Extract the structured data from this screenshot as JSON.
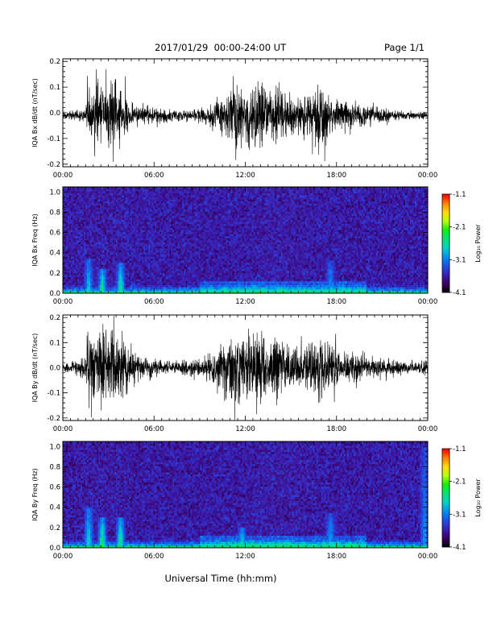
{
  "header": {
    "date_range": "2017/01/29  00:00-24:00 UT",
    "page": "Page 1/1"
  },
  "x_axis_title": "Universal Time (hh:mm)",
  "colorbar": {
    "label": "Log₁₀ Power",
    "tick_labels": [
      "-1.1",
      "-2.1",
      "-3.1",
      "-4.1"
    ],
    "range": [
      -4.1,
      -1.1
    ],
    "colormap": [
      "#000000",
      "#3a0060",
      "#3b1fb4",
      "#1f4fe6",
      "#0090f0",
      "#00d2c8",
      "#00e27a",
      "#10ee10",
      "#b8ff00",
      "#ffe000",
      "#ff8000",
      "#ff0000"
    ]
  },
  "chart_data": [
    {
      "type": "line",
      "panel": "bx_waveform",
      "ylabel": "IQA Bx dB/dt (nT/sec)",
      "xlim_hours": [
        0,
        24
      ],
      "x_tick_labels": [
        "00:00",
        "06:00",
        "12:00",
        "18:00",
        "00:00"
      ],
      "ylim": [
        -0.21,
        0.21
      ],
      "y_tick_labels": [
        "0.2",
        "0.1",
        "0.0",
        "-0.1",
        "-0.2"
      ],
      "y_ticks": [
        0.2,
        0.1,
        0.0,
        -0.1,
        -0.2
      ],
      "baseline": -0.01,
      "envelope": {
        "hours": [
          0,
          1.0,
          1.5,
          1.6,
          2.0,
          2.5,
          3.0,
          3.5,
          4.0,
          4.5,
          5.0,
          6.0,
          7.0,
          8.0,
          9.0,
          9.5,
          10.0,
          11.0,
          11.5,
          12.0,
          12.5,
          13.0,
          13.5,
          14.0,
          14.5,
          15.0,
          15.5,
          16.0,
          17.0,
          17.5,
          18.0,
          19.0,
          20.0,
          21.0,
          22.0,
          23.0,
          24.0
        ],
        "amplitude": [
          0.02,
          0.025,
          0.05,
          0.21,
          0.16,
          0.21,
          0.14,
          0.21,
          0.14,
          0.07,
          0.05,
          0.04,
          0.035,
          0.03,
          0.035,
          0.05,
          0.08,
          0.12,
          0.21,
          0.15,
          0.18,
          0.21,
          0.12,
          0.21,
          0.13,
          0.11,
          0.09,
          0.1,
          0.18,
          0.11,
          0.09,
          0.07,
          0.05,
          0.04,
          0.025,
          0.02,
          0.02
        ]
      }
    },
    {
      "type": "heatmap",
      "panel": "bx_spectrogram",
      "ylabel": "IQA Bx Freq (Hz)",
      "xlim_hours": [
        0,
        24
      ],
      "x_tick_labels": [
        "00:00",
        "06:00",
        "12:00",
        "18:00",
        "00:00"
      ],
      "ylim": [
        0,
        1.05
      ],
      "y_tick_labels": [
        "1.0",
        "0.8",
        "0.6",
        "0.4",
        "0.2",
        "0.0"
      ],
      "y_ticks": [
        1.0,
        0.8,
        0.6,
        0.4,
        0.2,
        0.0
      ],
      "zlim": [
        -4.1,
        -1.1
      ],
      "background_log_power": -3.6,
      "features": [
        {
          "hour": 1.7,
          "freq_max": 0.35,
          "log_power": -2.6
        },
        {
          "hour": 2.6,
          "freq_max": 0.25,
          "log_power": -2.3
        },
        {
          "hour": 3.8,
          "freq_max": 0.3,
          "log_power": -2.3
        },
        {
          "hour": 12.5,
          "freq_max": 0.1,
          "log_power": -2.4
        },
        {
          "hour": 17.6,
          "freq_max": 0.33,
          "log_power": -2.8
        }
      ]
    },
    {
      "type": "line",
      "panel": "by_waveform",
      "ylabel": "IQA By dB/dt (nT/sec)",
      "xlim_hours": [
        0,
        24
      ],
      "x_tick_labels": [
        "00:00",
        "06:00",
        "12:00",
        "18:00",
        "00:00"
      ],
      "ylim": [
        -0.21,
        0.21
      ],
      "y_tick_labels": [
        "0.2",
        "0.1",
        "0.0",
        "-0.1",
        "-0.2"
      ],
      "y_ticks": [
        0.2,
        0.1,
        0.0,
        -0.1,
        -0.2
      ],
      "baseline": 0.0,
      "envelope": {
        "hours": [
          0,
          1.0,
          1.5,
          1.6,
          2.0,
          2.5,
          3.0,
          3.5,
          4.0,
          4.5,
          5.0,
          6.0,
          7.0,
          8.0,
          9.0,
          9.5,
          10.0,
          11.0,
          11.5,
          12.0,
          12.5,
          13.0,
          13.5,
          14.0,
          14.5,
          15.0,
          15.5,
          16.0,
          17.0,
          17.5,
          18.0,
          19.0,
          20.0,
          21.0,
          22.0,
          23.0,
          23.8,
          24.0
        ],
        "amplitude": [
          0.03,
          0.04,
          0.07,
          0.21,
          0.17,
          0.21,
          0.15,
          0.21,
          0.15,
          0.08,
          0.06,
          0.05,
          0.04,
          0.04,
          0.05,
          0.07,
          0.1,
          0.16,
          0.21,
          0.16,
          0.18,
          0.21,
          0.14,
          0.19,
          0.14,
          0.12,
          0.1,
          0.11,
          0.17,
          0.12,
          0.1,
          0.08,
          0.06,
          0.05,
          0.04,
          0.03,
          0.05,
          0.03
        ]
      }
    },
    {
      "type": "heatmap",
      "panel": "by_spectrogram",
      "ylabel": "IQA By Freq (Hz)",
      "xlim_hours": [
        0,
        24
      ],
      "x_tick_labels": [
        "00:00",
        "06:00",
        "12:00",
        "18:00",
        "00:00"
      ],
      "ylim": [
        0,
        1.05
      ],
      "y_tick_labels": [
        "1.0",
        "0.8",
        "0.6",
        "0.4",
        "0.2",
        "0.0"
      ],
      "y_ticks": [
        1.0,
        0.8,
        0.6,
        0.4,
        0.2,
        0.0
      ],
      "zlim": [
        -4.1,
        -1.1
      ],
      "background_log_power": -3.6,
      "features": [
        {
          "hour": 1.7,
          "freq_max": 0.4,
          "log_power": -2.5
        },
        {
          "hour": 2.6,
          "freq_max": 0.3,
          "log_power": -2.2
        },
        {
          "hour": 3.8,
          "freq_max": 0.3,
          "log_power": -2.2
        },
        {
          "hour": 11.8,
          "freq_max": 0.2,
          "log_power": -2.4
        },
        {
          "hour": 17.6,
          "freq_max": 0.35,
          "log_power": -2.7
        },
        {
          "hour": 23.8,
          "freq_max": 1.0,
          "log_power": -2.9
        }
      ]
    }
  ]
}
